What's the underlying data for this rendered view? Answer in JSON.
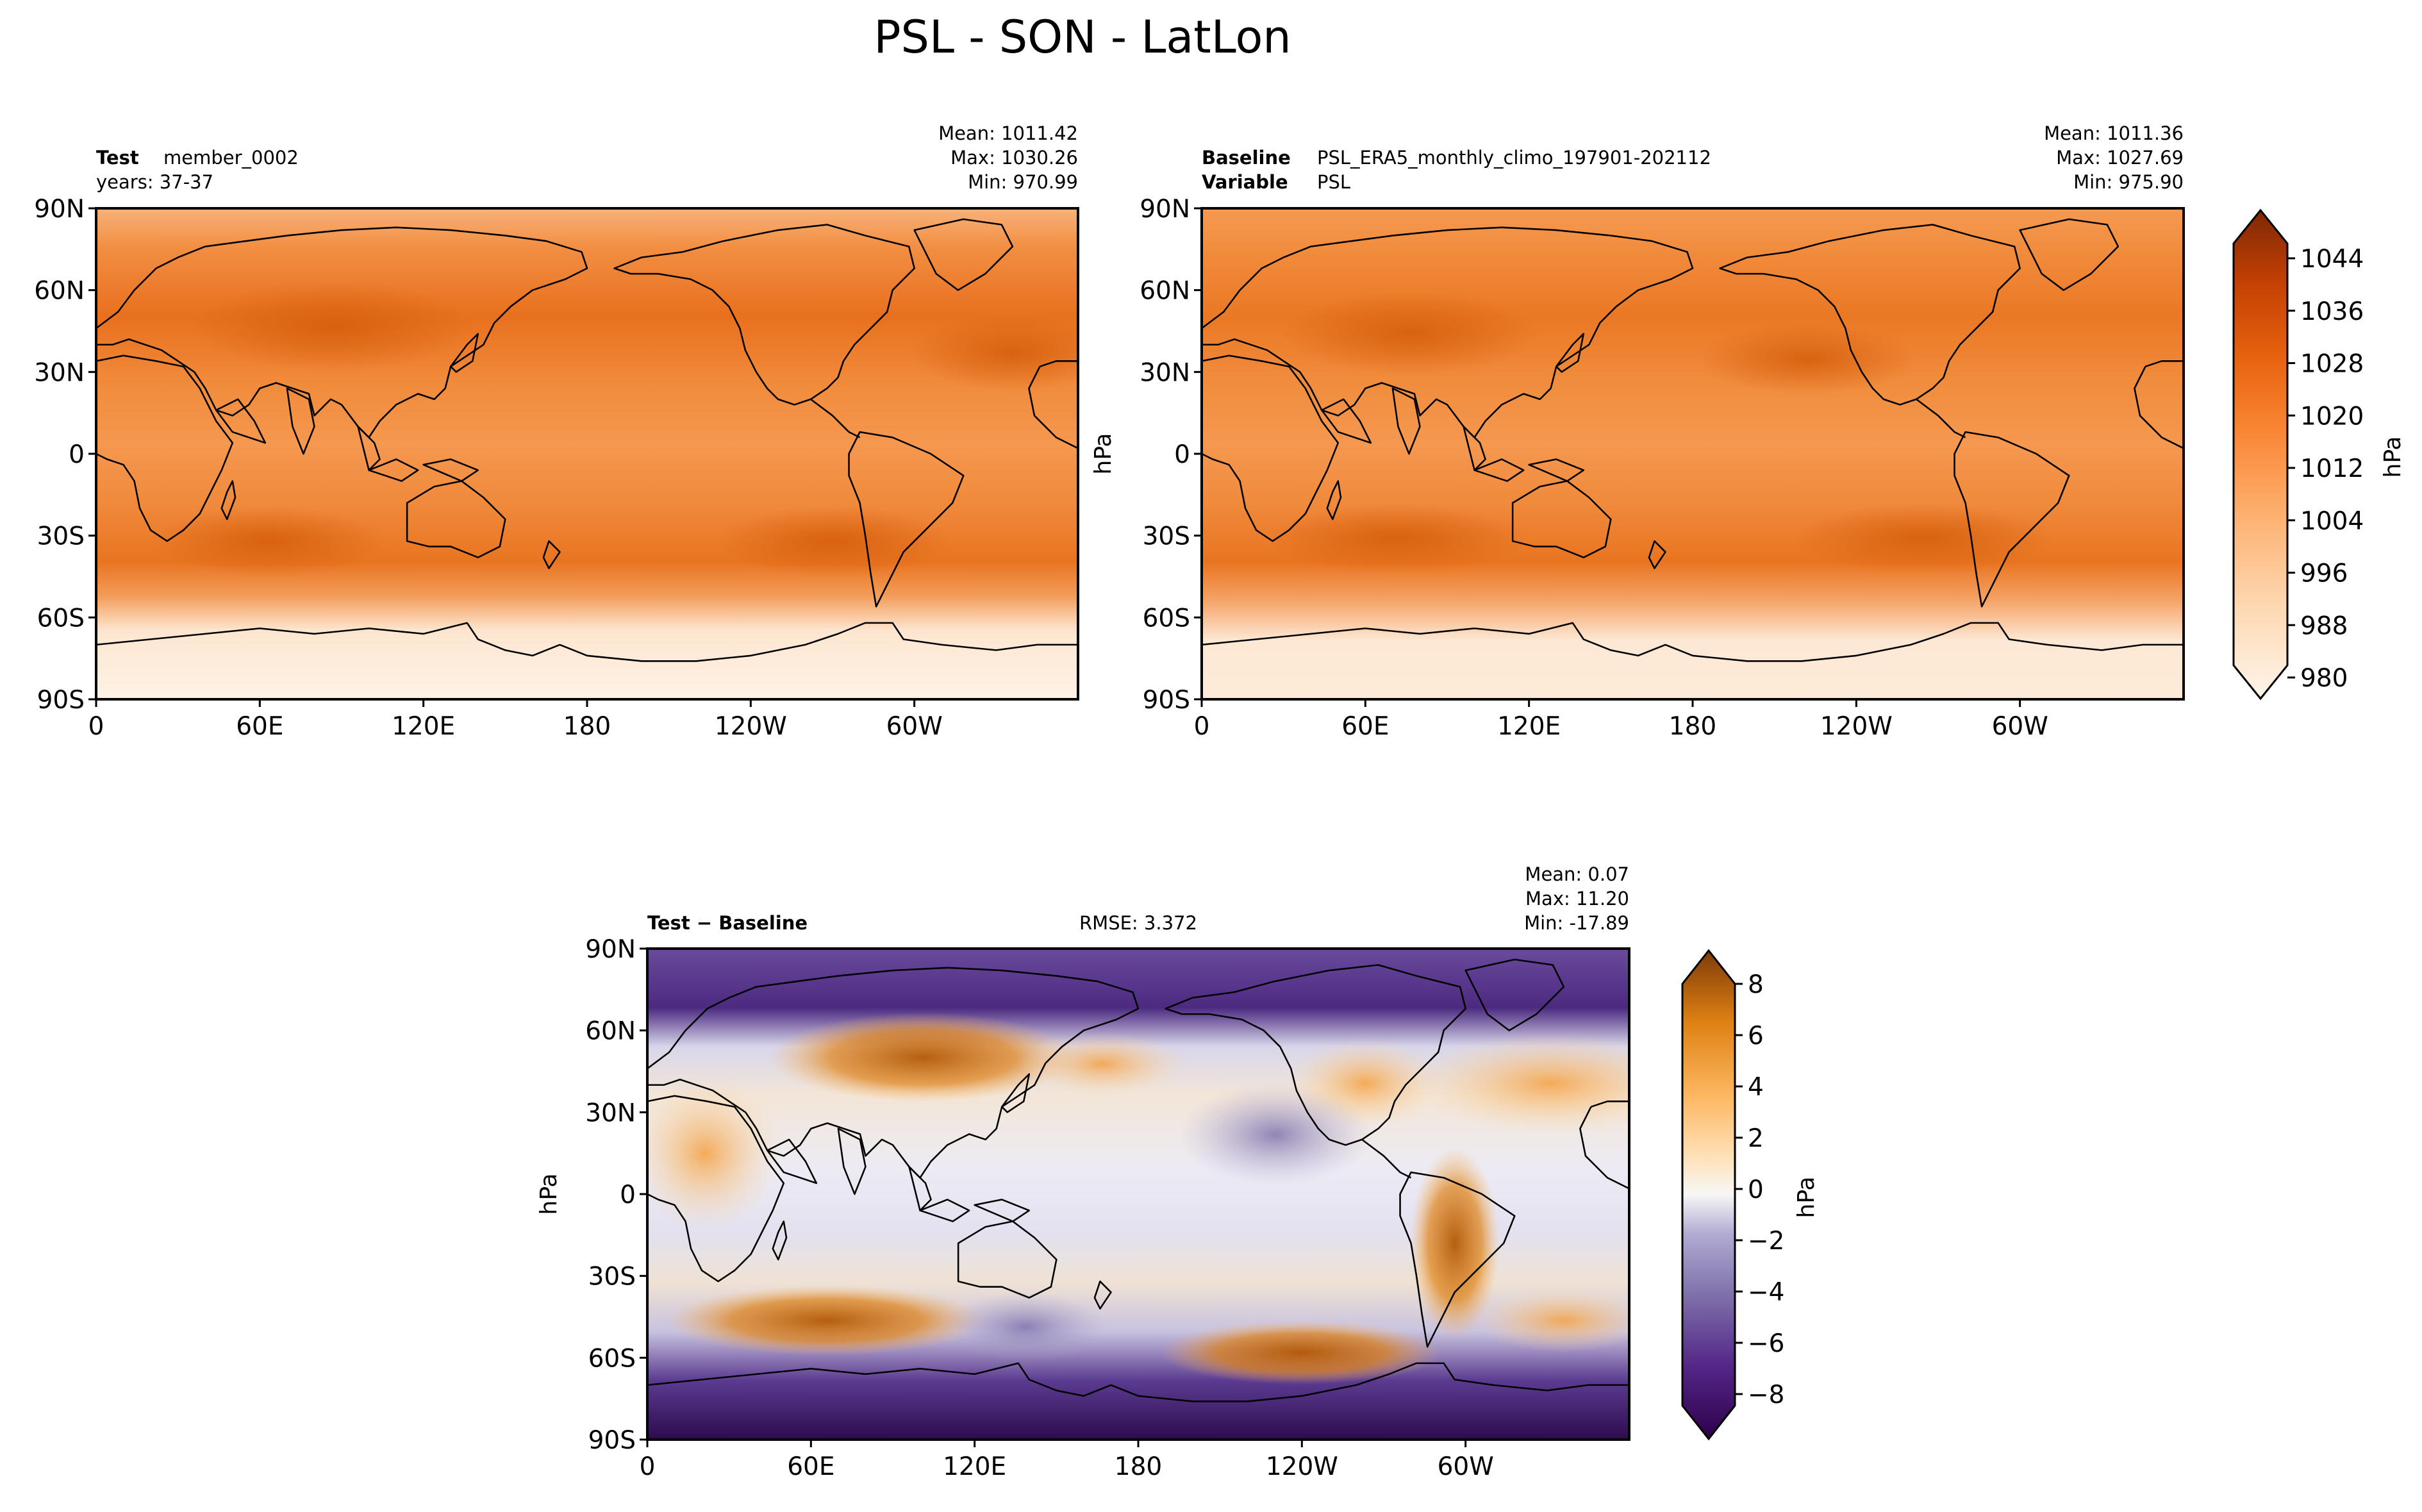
{
  "chart_data": [
    {
      "type": "heatmap",
      "name": "test",
      "title": "PSL - SON - LatLon",
      "label_bold": "Test",
      "label_value": "member_0002",
      "years_label": "years: 37-37",
      "stats": [
        "Mean: 1011.42",
        "Max: 1030.26",
        "Min: 970.99"
      ],
      "x_ticks": [
        "0",
        "60E",
        "120E",
        "180",
        "120W",
        "60W"
      ],
      "y_ticks": [
        "90N",
        "60N",
        "30N",
        "0",
        "30S",
        "60S",
        "90S"
      ],
      "xlim": [
        0,
        360
      ],
      "ylim": [
        -90,
        90
      ],
      "colormap": "Oranges",
      "unit": "hPa"
    },
    {
      "type": "heatmap",
      "name": "baseline",
      "label_bold": "Baseline",
      "label_value": "PSL_ERA5_monthly_climo_197901-202112",
      "variable_bold": "Variable",
      "variable_value": "PSL",
      "stats": [
        "Mean: 1011.36",
        "Max: 1027.69",
        "Min: 975.90"
      ],
      "x_ticks": [
        "0",
        "60E",
        "120E",
        "180",
        "120W",
        "60W"
      ],
      "y_ticks": [
        "90N",
        "60N",
        "30N",
        "0",
        "30S",
        "60S",
        "90S"
      ],
      "ylabel": "hPa",
      "xlim": [
        0,
        360
      ],
      "ylim": [
        -90,
        90
      ],
      "colorbar": {
        "ticks": [
          "1044",
          "1036",
          "1028",
          "1020",
          "1012",
          "1004",
          "996",
          "988",
          "980"
        ],
        "range": [
          980,
          1048
        ],
        "label": "hPa"
      },
      "colormap": "Oranges"
    },
    {
      "type": "heatmap",
      "name": "difference",
      "label_bold": "Test − Baseline",
      "rmse_label": "RMSE: 3.372",
      "stats": [
        "Mean:  0.07",
        "Max: 11.20",
        "Min: -17.89"
      ],
      "x_ticks": [
        "0",
        "60E",
        "120E",
        "180",
        "120W",
        "60W"
      ],
      "y_ticks": [
        "90N",
        "60N",
        "30N",
        "0",
        "30S",
        "60S",
        "90S"
      ],
      "ylabel": "hPa",
      "xlim": [
        0,
        360
      ],
      "ylim": [
        -90,
        90
      ],
      "colorbar": {
        "ticks": [
          "8",
          "6",
          "4",
          "2",
          "0",
          "−2",
          "−4",
          "−6",
          "−8"
        ],
        "range": [
          -9,
          9
        ],
        "label": "hPa"
      },
      "colormap": "PuOr_r"
    }
  ]
}
